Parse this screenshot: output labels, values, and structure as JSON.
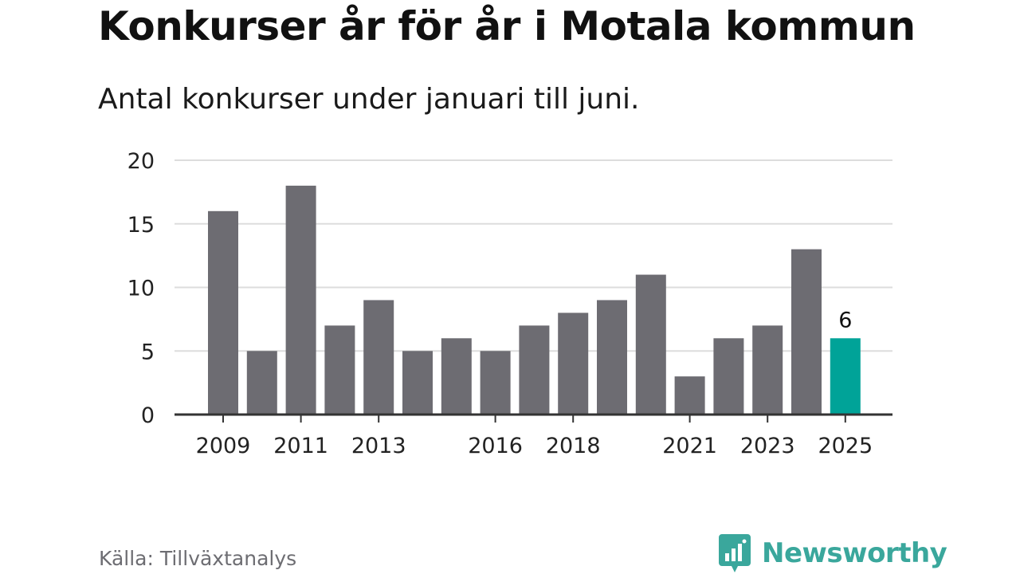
{
  "title": "Konkurser år för år i Motala kommun",
  "subtitle": "Antal konkurser under januari till juni.",
  "source": "Källa: Tillväxtanalys",
  "brand": {
    "name": "Newsworthy",
    "icon": "newsworthy-logo-icon"
  },
  "colors": {
    "bar": "#6d6c72",
    "highlight": "#00a398",
    "grid": "#dddddd",
    "axis": "#333333",
    "brand": "#3aa79c"
  },
  "chart_data": {
    "type": "bar",
    "categories": [
      "2009",
      "2010",
      "2011",
      "2012",
      "2013",
      "2014",
      "2015",
      "2016",
      "2017",
      "2018",
      "2019",
      "2020",
      "2021",
      "2022",
      "2023",
      "2024",
      "2025"
    ],
    "values": [
      16,
      5,
      18,
      7,
      9,
      5,
      6,
      5,
      7,
      8,
      9,
      11,
      3,
      6,
      7,
      13,
      6
    ],
    "x_tick_labels": [
      "2009",
      "2011",
      "2013",
      "2016",
      "2018",
      "2021",
      "2023",
      "2025"
    ],
    "y_ticks": [
      0,
      5,
      10,
      15,
      20
    ],
    "ylim": [
      0,
      20
    ],
    "highlight_category": "2025",
    "data_labels": [
      {
        "category": "2025",
        "label": "6"
      }
    ],
    "xlabel": "",
    "ylabel": "",
    "grid": true
  }
}
